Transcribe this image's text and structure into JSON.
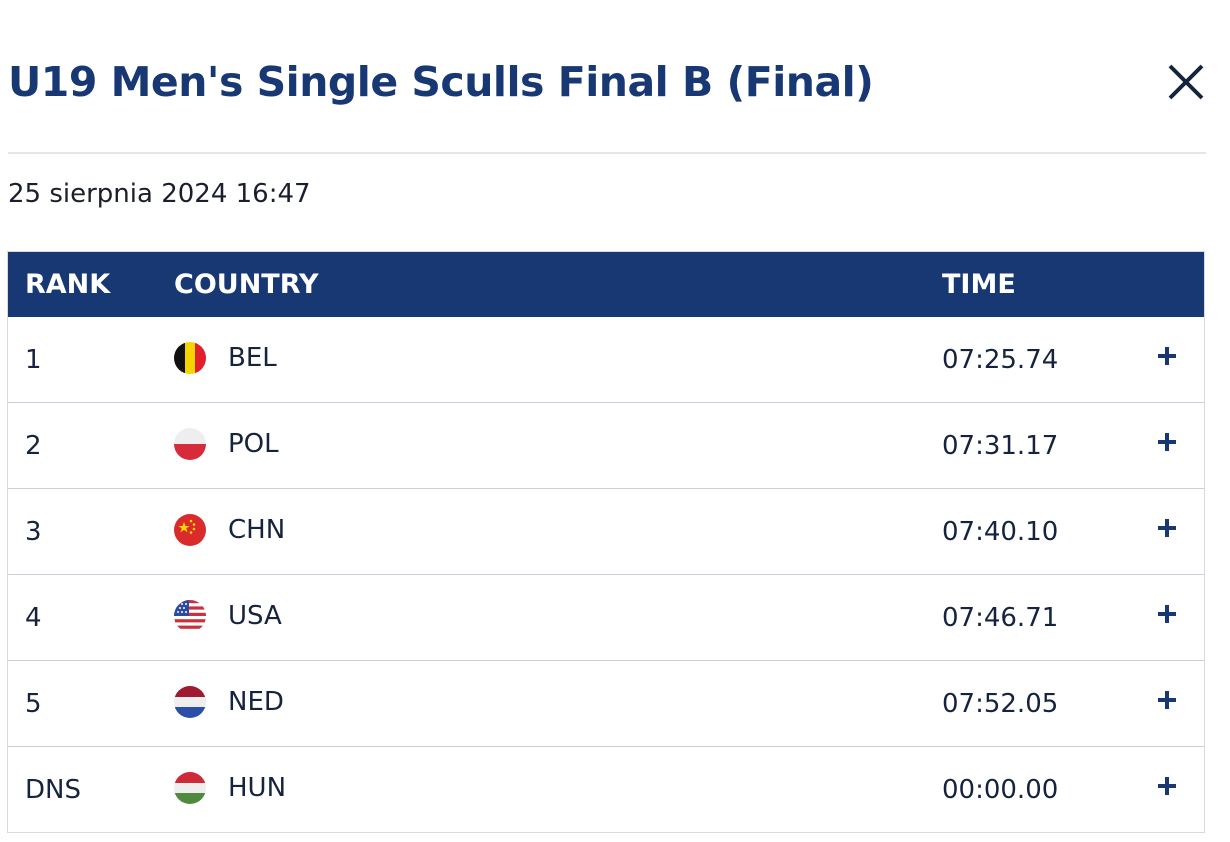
{
  "header": {
    "title": "U19 Men's Single Sculls Final B (Final)"
  },
  "date": "25 sierpnia 2024 16:47",
  "table": {
    "columns": {
      "rank": "RANK",
      "country": "COUNTRY",
      "time": "TIME"
    },
    "rows": [
      {
        "rank": "1",
        "country": "BEL",
        "time": "07:25.74",
        "flag_icon": "belgium-flag-icon"
      },
      {
        "rank": "2",
        "country": "POL",
        "time": "07:31.17",
        "flag_icon": "poland-flag-icon"
      },
      {
        "rank": "3",
        "country": "CHN",
        "time": "07:40.10",
        "flag_icon": "china-flag-icon"
      },
      {
        "rank": "4",
        "country": "USA",
        "time": "07:46.71",
        "flag_icon": "usa-flag-icon"
      },
      {
        "rank": "5",
        "country": "NED",
        "time": "07:52.05",
        "flag_icon": "netherlands-flag-icon"
      },
      {
        "rank": "DNS",
        "country": "HUN",
        "time": "00:00.00",
        "flag_icon": "hungary-flag-icon"
      }
    ]
  },
  "colors": {
    "title": "#183874",
    "header_bg": "#183874",
    "text": "#15233f",
    "row_border": "#c9cfdb"
  }
}
